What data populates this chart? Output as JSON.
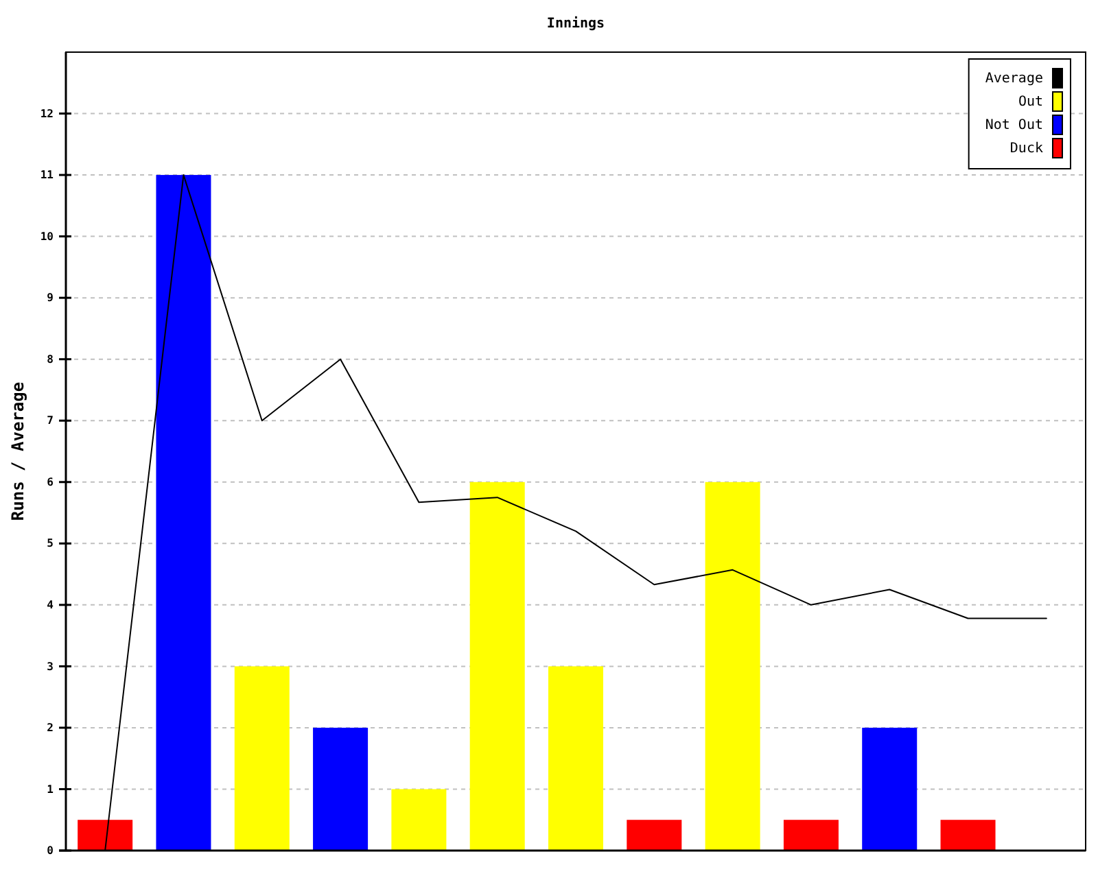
{
  "chart_data": {
    "type": "bar",
    "title": "Innings",
    "ylabel": "Runs / Average",
    "categories": [
      null,
      null,
      null,
      null,
      null,
      null,
      null,
      null,
      null,
      null,
      null,
      null,
      null
    ],
    "stacked": true,
    "series": [
      {
        "name": "Average",
        "type": "line",
        "color": "#000000",
        "values": [
          0,
          11,
          7,
          8,
          5.67,
          5.75,
          5.2,
          4.33,
          4.57,
          4,
          4.25,
          3.78,
          3.78
        ]
      },
      {
        "name": "Out",
        "color": "#ffff00",
        "values": [
          null,
          null,
          3,
          null,
          1,
          6,
          3,
          null,
          6,
          null,
          null,
          null,
          null
        ]
      },
      {
        "name": "Not Out",
        "color": "#0000ff",
        "values": [
          null,
          11,
          null,
          2,
          null,
          null,
          null,
          null,
          null,
          null,
          2,
          null,
          null
        ]
      },
      {
        "name": "Duck",
        "color": "#ff0000",
        "values": [
          0.5,
          null,
          null,
          null,
          null,
          null,
          null,
          0.5,
          null,
          0.5,
          null,
          0.5,
          null
        ]
      }
    ],
    "ylim": [
      0,
      13
    ],
    "yticks": [
      0,
      1,
      2,
      3,
      4,
      5,
      6,
      7,
      8,
      9,
      10,
      11,
      12
    ],
    "grid": "y",
    "legend": "top right",
    "tick_labels": "y",
    "line_style": "solid",
    "marker": "none"
  }
}
